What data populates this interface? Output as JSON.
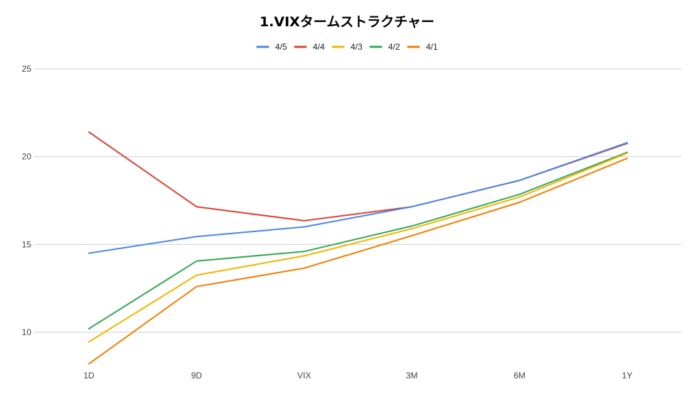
{
  "chart_data": {
    "type": "line",
    "title": "1.VIXタームストラクチャー",
    "xlabel": "",
    "ylabel": "",
    "categories": [
      "1D",
      "9D",
      "VIX",
      "3M",
      "6M",
      "1Y"
    ],
    "yticks": [
      10,
      15,
      20,
      25
    ],
    "ylim": [
      7.9,
      25
    ],
    "grid": true,
    "legend_position": "top",
    "series": [
      {
        "name": "4/5",
        "color": "#4a86e8",
        "values": [
          14.5,
          15.45,
          16.0,
          17.15,
          18.65,
          20.8
        ]
      },
      {
        "name": "4/4",
        "color": "#db4437",
        "values": [
          21.4,
          17.15,
          16.35,
          17.15,
          18.65,
          20.75
        ]
      },
      {
        "name": "4/3",
        "color": "#f4b400",
        "values": [
          9.45,
          13.25,
          14.35,
          15.9,
          17.7,
          20.2
        ]
      },
      {
        "name": "4/2",
        "color": "#34a853",
        "values": [
          10.2,
          14.05,
          14.6,
          16.05,
          17.85,
          20.25
        ]
      },
      {
        "name": "4/1",
        "color": "#f57c00",
        "values": [
          8.2,
          12.6,
          13.65,
          15.5,
          17.4,
          19.9
        ]
      }
    ]
  }
}
